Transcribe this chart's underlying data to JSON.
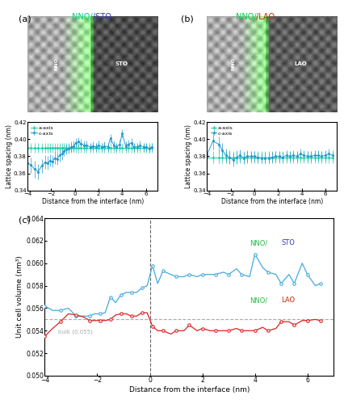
{
  "title_a_color1": "#00cc88",
  "title_a_color2": "#3333cc",
  "title_b_color1": "#00cc44",
  "title_b_color2": "#cc2200",
  "xlabel_ab": "Distance from the interface (nm)",
  "ylabel_ab": "Lattice spacing (nm)",
  "ylabel_c": "Unit cell volume (nm³)",
  "xlabel_c": "Distance from the interface (nm)",
  "ylim_ab": [
    0.34,
    0.42
  ],
  "yticks_ab": [
    0.34,
    0.36,
    0.38,
    0.4,
    0.42
  ],
  "xlim_ab": [
    -4,
    7
  ],
  "xticks_ab": [
    -4,
    -2,
    0,
    2,
    4,
    6
  ],
  "ylim_c": [
    0.05,
    0.064
  ],
  "yticks_c": [
    0.05,
    0.052,
    0.054,
    0.056,
    0.058,
    0.06,
    0.062,
    0.064
  ],
  "xlim_c": [
    -4,
    7
  ],
  "xticks_c": [
    -4,
    -2,
    0,
    2,
    4,
    6
  ],
  "bulk_value": 0.055,
  "bulk_label": "bulk (0.055)",
  "legend_ab_inplane": "a-axis",
  "legend_ab_outofplane": "c-axis",
  "color_inplane": "#22ccaa",
  "color_outofplane": "#2299cc",
  "color_sto": "#44aadd",
  "color_lao": "#dd2222",
  "color_bulk": "#aaaaaa",
  "nno_sto_x": [
    -4.0,
    -3.7,
    -3.4,
    -3.1,
    -2.8,
    -2.5,
    -2.3,
    -2.1,
    -1.9,
    -1.7,
    -1.5,
    -1.3,
    -1.1,
    -0.9,
    -0.7,
    -0.5,
    -0.3,
    -0.1,
    0.1,
    0.3,
    0.5,
    0.8,
    1.0,
    1.3,
    1.5,
    1.8,
    2.0,
    2.3,
    2.5,
    2.8,
    3.0,
    3.3,
    3.5,
    3.8,
    4.0,
    4.3,
    4.5,
    4.8,
    5.0,
    5.3,
    5.5,
    5.8,
    6.0,
    6.3,
    6.5
  ],
  "nno_sto_inplane": [
    0.39,
    0.39,
    0.39,
    0.39,
    0.39,
    0.39,
    0.39,
    0.39,
    0.39,
    0.39,
    0.39,
    0.39,
    0.39,
    0.39,
    0.39,
    0.39,
    0.39,
    0.39,
    0.39,
    0.39,
    0.39,
    0.39,
    0.39,
    0.39,
    0.39,
    0.39,
    0.39,
    0.39,
    0.39,
    0.39,
    0.39,
    0.39,
    0.39,
    0.39,
    0.39,
    0.39,
    0.39,
    0.39,
    0.39,
    0.39,
    0.39,
    0.39,
    0.39,
    0.39,
    0.39
  ],
  "nno_sto_outofplane": [
    0.372,
    0.37,
    0.365,
    0.362,
    0.369,
    0.373,
    0.372,
    0.375,
    0.374,
    0.378,
    0.377,
    0.381,
    0.383,
    0.386,
    0.388,
    0.389,
    0.391,
    0.392,
    0.396,
    0.397,
    0.395,
    0.393,
    0.393,
    0.391,
    0.392,
    0.391,
    0.393,
    0.391,
    0.392,
    0.391,
    0.401,
    0.393,
    0.391,
    0.394,
    0.407,
    0.392,
    0.394,
    0.396,
    0.391,
    0.391,
    0.393,
    0.391,
    0.391,
    0.389,
    0.391
  ],
  "nno_sto_err_ip": [
    0.006,
    0.006,
    0.006,
    0.006,
    0.006,
    0.006,
    0.006,
    0.006,
    0.006,
    0.006,
    0.006,
    0.006,
    0.006,
    0.006,
    0.006,
    0.006,
    0.006,
    0.006,
    0.006,
    0.006,
    0.006,
    0.006,
    0.006,
    0.006,
    0.006,
    0.006,
    0.006,
    0.006,
    0.006,
    0.006,
    0.006,
    0.006,
    0.006,
    0.006,
    0.006,
    0.006,
    0.006,
    0.006,
    0.006,
    0.006,
    0.006,
    0.006,
    0.006,
    0.006,
    0.006
  ],
  "nno_sto_err_op": [
    0.008,
    0.009,
    0.01,
    0.009,
    0.008,
    0.008,
    0.008,
    0.007,
    0.007,
    0.007,
    0.007,
    0.007,
    0.007,
    0.006,
    0.006,
    0.006,
    0.006,
    0.006,
    0.005,
    0.005,
    0.005,
    0.005,
    0.005,
    0.005,
    0.005,
    0.005,
    0.005,
    0.005,
    0.005,
    0.005,
    0.005,
    0.005,
    0.005,
    0.005,
    0.005,
    0.005,
    0.005,
    0.005,
    0.005,
    0.005,
    0.005,
    0.005,
    0.005,
    0.005,
    0.005
  ],
  "nno_lao_x": [
    -4.0,
    -3.5,
    -3.0,
    -2.7,
    -2.4,
    -2.1,
    -1.8,
    -1.5,
    -1.2,
    -0.9,
    -0.6,
    -0.3,
    0.0,
    0.3,
    0.6,
    0.9,
    1.2,
    1.5,
    1.8,
    2.1,
    2.4,
    2.7,
    3.0,
    3.3,
    3.6,
    3.9,
    4.2,
    4.5,
    4.8,
    5.1,
    5.4,
    5.7,
    6.0,
    6.3,
    6.6
  ],
  "nno_lao_inplane": [
    0.379,
    0.379,
    0.379,
    0.379,
    0.379,
    0.379,
    0.379,
    0.379,
    0.379,
    0.379,
    0.379,
    0.379,
    0.379,
    0.379,
    0.379,
    0.379,
    0.379,
    0.379,
    0.379,
    0.379,
    0.379,
    0.379,
    0.379,
    0.379,
    0.379,
    0.379,
    0.379,
    0.379,
    0.379,
    0.379,
    0.379,
    0.379,
    0.379,
    0.379,
    0.379
  ],
  "nno_lao_outofplane": [
    0.382,
    0.398,
    0.394,
    0.387,
    0.381,
    0.379,
    0.376,
    0.379,
    0.381,
    0.378,
    0.38,
    0.38,
    0.38,
    0.379,
    0.378,
    0.378,
    0.378,
    0.379,
    0.38,
    0.38,
    0.379,
    0.381,
    0.38,
    0.381,
    0.38,
    0.383,
    0.381,
    0.38,
    0.38,
    0.381,
    0.381,
    0.38,
    0.381,
    0.383,
    0.381
  ],
  "nno_lao_err_ip": [
    0.007,
    0.007,
    0.007,
    0.007,
    0.007,
    0.007,
    0.007,
    0.007,
    0.007,
    0.007,
    0.007,
    0.007,
    0.007,
    0.007,
    0.007,
    0.007,
    0.007,
    0.007,
    0.007,
    0.007,
    0.007,
    0.007,
    0.007,
    0.007,
    0.007,
    0.007,
    0.007,
    0.007,
    0.007,
    0.007,
    0.007,
    0.007,
    0.007,
    0.007,
    0.007
  ],
  "nno_lao_err_op": [
    0.009,
    0.01,
    0.009,
    0.009,
    0.008,
    0.008,
    0.008,
    0.008,
    0.007,
    0.007,
    0.007,
    0.006,
    0.006,
    0.006,
    0.006,
    0.006,
    0.006,
    0.006,
    0.006,
    0.006,
    0.006,
    0.006,
    0.006,
    0.006,
    0.006,
    0.006,
    0.006,
    0.006,
    0.006,
    0.006,
    0.006,
    0.006,
    0.006,
    0.006,
    0.006
  ],
  "sto_vol_x": [
    -4.0,
    -3.7,
    -3.4,
    -3.1,
    -2.8,
    -2.5,
    -2.3,
    -2.1,
    -1.9,
    -1.7,
    -1.5,
    -1.3,
    -1.1,
    -0.9,
    -0.7,
    -0.5,
    -0.3,
    -0.1,
    0.1,
    0.3,
    0.5,
    0.8,
    1.0,
    1.3,
    1.5,
    1.8,
    2.0,
    2.3,
    2.5,
    2.8,
    3.0,
    3.3,
    3.5,
    3.8,
    4.0,
    4.3,
    4.5,
    4.8,
    5.0,
    5.3,
    5.5,
    5.8,
    6.0,
    6.3,
    6.5
  ],
  "sto_vol_y": [
    0.0562,
    0.0558,
    0.0558,
    0.056,
    0.0553,
    0.0553,
    0.0553,
    0.0555,
    0.0555,
    0.0556,
    0.057,
    0.0565,
    0.0572,
    0.0574,
    0.0574,
    0.0574,
    0.0578,
    0.058,
    0.0598,
    0.0582,
    0.0593,
    0.059,
    0.0588,
    0.0588,
    0.059,
    0.0588,
    0.059,
    0.059,
    0.059,
    0.0592,
    0.059,
    0.0595,
    0.059,
    0.0588,
    0.0608,
    0.0596,
    0.0592,
    0.059,
    0.0582,
    0.059,
    0.0582,
    0.06,
    0.059,
    0.058,
    0.0582
  ],
  "lao_vol_x": [
    -4.0,
    -3.7,
    -3.4,
    -3.1,
    -2.8,
    -2.5,
    -2.3,
    -2.1,
    -1.9,
    -1.7,
    -1.5,
    -1.3,
    -1.1,
    -0.9,
    -0.7,
    -0.5,
    -0.3,
    -0.1,
    0.1,
    0.3,
    0.5,
    0.8,
    1.0,
    1.3,
    1.5,
    1.8,
    2.0,
    2.3,
    2.5,
    2.8,
    3.0,
    3.3,
    3.5,
    3.8,
    4.0,
    4.3,
    4.5,
    4.8,
    5.0,
    5.3,
    5.5,
    5.8,
    6.0,
    6.3,
    6.5
  ],
  "lao_vol_y": [
    0.0535,
    0.0542,
    0.0548,
    0.0555,
    0.0554,
    0.0552,
    0.0549,
    0.0549,
    0.0549,
    0.0549,
    0.055,
    0.0554,
    0.0555,
    0.0555,
    0.0553,
    0.0553,
    0.0556,
    0.0556,
    0.0544,
    0.054,
    0.054,
    0.0537,
    0.054,
    0.054,
    0.0545,
    0.054,
    0.0542,
    0.054,
    0.054,
    0.054,
    0.054,
    0.0542,
    0.054,
    0.054,
    0.054,
    0.0543,
    0.054,
    0.0542,
    0.0548,
    0.0548,
    0.0545,
    0.0549,
    0.0549,
    0.055,
    0.0549
  ],
  "panel_label_fontsize": 8,
  "axis_fontsize": 5.5,
  "tick_fontsize": 5,
  "legend_fontsize": 4.5,
  "annotation_fontsize": 5
}
